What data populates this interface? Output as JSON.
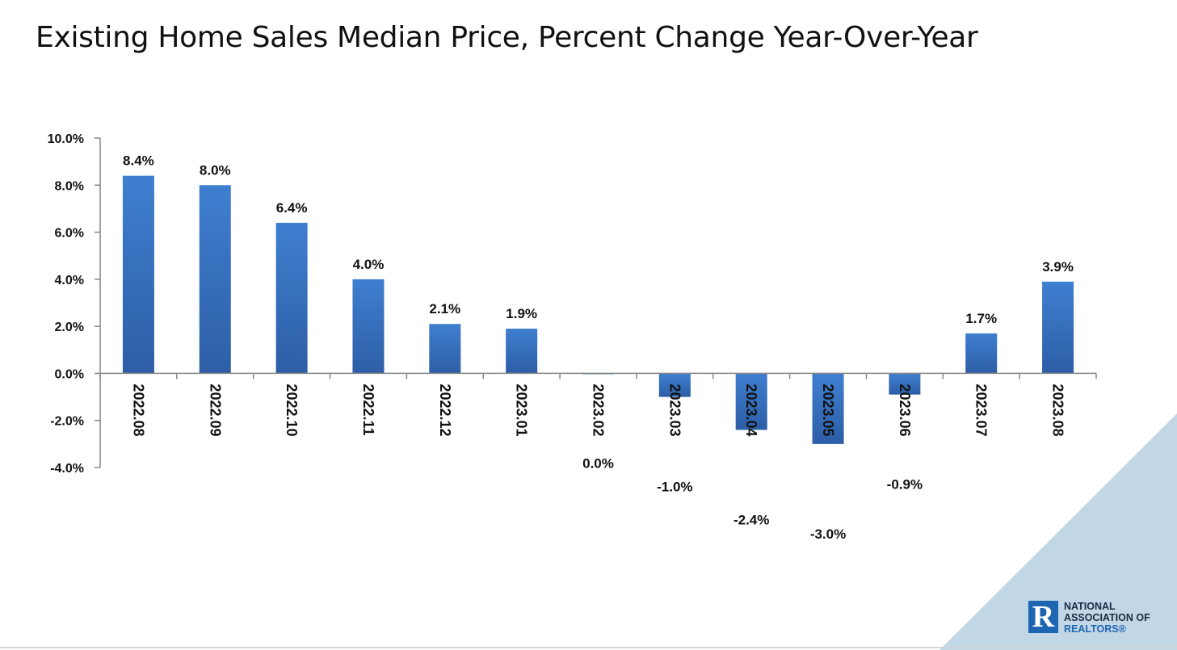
{
  "page": {
    "title": "Existing Home Sales Median Price, Percent Change Year-Over-Year"
  },
  "chart_data": {
    "type": "bar",
    "title": "",
    "xlabel": "",
    "ylabel": "",
    "categories": [
      "2022.08",
      "2022.09",
      "2022.10",
      "2022.11",
      "2022.12",
      "2023.01",
      "2023.02",
      "2023.03",
      "2023.04",
      "2023.05",
      "2023.06",
      "2023.07",
      "2023.08"
    ],
    "values": [
      8.4,
      8.0,
      6.4,
      4.0,
      2.1,
      1.9,
      0.0,
      -1.0,
      -2.4,
      -3.0,
      -0.9,
      1.7,
      3.9
    ],
    "data_labels": [
      "8.4%",
      "8.0%",
      "6.4%",
      "4.0%",
      "2.1%",
      "1.9%",
      "0.0%",
      "-1.0%",
      "-2.4%",
      "-3.0%",
      "-0.9%",
      "1.7%",
      "3.9%"
    ],
    "ylim": [
      -4,
      10
    ],
    "y_ticks": [
      10,
      8,
      6,
      4,
      2,
      0,
      -2,
      -4
    ],
    "y_tick_labels": [
      "10.0%",
      "8.0%",
      "6.0%",
      "4.0%",
      "2.0%",
      "0.0%",
      "-2.0%",
      "-4.0%"
    ],
    "grid": false,
    "legend": "none",
    "bar_color": "#3a76c4"
  },
  "logo": {
    "mark": "R",
    "line1": "NATIONAL",
    "line2": "ASSOCIATION OF",
    "line3": "REALTORS®"
  },
  "colors": {
    "bar_light": "#3f7fd0",
    "bar_dark": "#2d5ea6",
    "corner_triangle": "#c2d7e6",
    "logo_blue": "#1f66b2"
  }
}
